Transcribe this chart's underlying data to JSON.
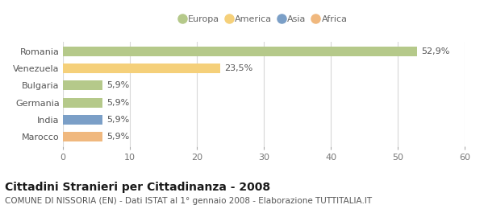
{
  "categories": [
    "Marocco",
    "India",
    "Germania",
    "Bulgaria",
    "Venezuela",
    "Romania"
  ],
  "values": [
    5.9,
    5.9,
    5.9,
    5.9,
    23.5,
    52.9
  ],
  "bar_colors": [
    "#f0b87e",
    "#7b9fc7",
    "#b5c98a",
    "#b5c98a",
    "#f5d07a",
    "#b5c98a"
  ],
  "labels": [
    "5,9%",
    "5,9%",
    "5,9%",
    "5,9%",
    "23,5%",
    "52,9%"
  ],
  "legend_labels": [
    "Europa",
    "America",
    "Asia",
    "Africa"
  ],
  "legend_colors": [
    "#b5c98a",
    "#f5d07a",
    "#7b9fc7",
    "#f0b87e"
  ],
  "title": "Cittadini Stranieri per Cittadinanza - 2008",
  "subtitle": "COMUNE DI NISSORIA (EN) - Dati ISTAT al 1° gennaio 2008 - Elaborazione TUTTITALIA.IT",
  "xlim": [
    0,
    60
  ],
  "xticks": [
    0,
    10,
    20,
    30,
    40,
    50,
    60
  ],
  "background_color": "#ffffff",
  "bar_background": "#ffffff",
  "grid_color": "#d8d8d8",
  "label_fontsize": 8,
  "tick_fontsize": 8,
  "title_fontsize": 10,
  "subtitle_fontsize": 7.5,
  "bar_height": 0.55
}
